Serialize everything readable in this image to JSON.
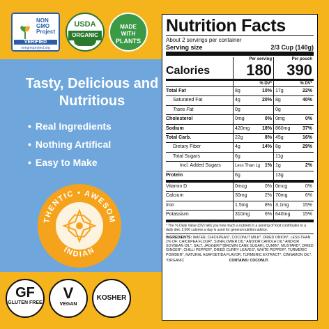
{
  "badges": {
    "nongmo_title": "NON GMO Project",
    "nongmo_verified": "VERIFIED",
    "nongmo_url": "nongmoproject.org",
    "usda_top": "USDA",
    "usda_label": "ORGANIC",
    "plants_line1": "MADE",
    "plants_line2": "WITH",
    "plants_line3": "PLANTS"
  },
  "headline": "Tasty, Delicious and Nutritious",
  "bullets": [
    "Real Ingredients",
    "Nothing Artifical",
    "Easy to Make"
  ],
  "seal": {
    "top_text": "AUTHENTIC • AWESOME •",
    "bottom_text": "INDIAN"
  },
  "bottom_badges": {
    "gf_big": "GF",
    "gf_small": "GLUTEN FREE",
    "vegan_big": "V",
    "vegan_small": "VEGAN",
    "kosher": "KOSHER"
  },
  "nutrition": {
    "title": "Nutrition Facts",
    "servings": "About 2 servings per container",
    "serving_size_label": "Serving size",
    "serving_size_value": "2/3 Cup (140g)",
    "per_serving": "Per serving",
    "per_pouch": "Per pouch",
    "calories_label": "Calories",
    "calories_serving": "180",
    "calories_pouch": "390",
    "dv_label": "% DV*",
    "rows": [
      {
        "name": "Total Fat",
        "style": "b",
        "a1": "8g",
        "p1": "10%",
        "a2": "17g",
        "p2": "22%"
      },
      {
        "name": "Saturated Fat",
        "style": "ind",
        "a1": "4g",
        "p1": "20%",
        "a2": "8g",
        "p2": "40%"
      },
      {
        "name": "Trans Fat",
        "style": "ind i",
        "a1": "0g",
        "p1": "",
        "a2": "0g",
        "p2": ""
      },
      {
        "name": "Cholesterol",
        "style": "b",
        "a1": "0mg",
        "p1": "0%",
        "a2": "0mg",
        "p2": "0%"
      },
      {
        "name": "Sodium",
        "style": "b",
        "a1": "420mg",
        "p1": "18%",
        "a2": "860mg",
        "p2": "37%"
      },
      {
        "name": "Total Carb.",
        "style": "b",
        "a1": "22g",
        "p1": "8%",
        "a2": "45g",
        "p2": "16%"
      },
      {
        "name": "Dietary Fiber",
        "style": "ind",
        "a1": "4g",
        "p1": "14%",
        "a2": "8g",
        "p2": "29%"
      },
      {
        "name": "Total Sugars",
        "style": "ind",
        "a1": "6g",
        "p1": "",
        "a2": "11g",
        "p2": ""
      },
      {
        "name": "Incl. Added Sugars",
        "style": "ind2",
        "a1": "Less Than 1g",
        "p1": "1%",
        "a2": "1g",
        "p2": "2%"
      },
      {
        "name": "Protein",
        "style": "b",
        "a1": "6g",
        "p1": "",
        "a2": "13g",
        "p2": ""
      },
      {
        "name": "Vitamin D",
        "style": "",
        "a1": "0mcg",
        "p1": "0%",
        "a2": "0mcg",
        "p2": "0%"
      },
      {
        "name": "Calcium",
        "style": "",
        "a1": "30mg",
        "p1": "2%",
        "a2": "70mg",
        "p2": "6%"
      },
      {
        "name": "Iron",
        "style": "",
        "a1": "1.5mg",
        "p1": "8%",
        "a2": "3.1mg",
        "p2": "15%"
      },
      {
        "name": "Potassium",
        "style": "",
        "a1": "310mg",
        "p1": "6%",
        "a2": "640mg",
        "p2": "15%"
      }
    ],
    "footnote": "* The % Daily Value (DV) tells you how much a nutrient in a serving of food contributes to a daily diet. 2,000 calories a day is used for general nutrition advice.",
    "ingredients_label": "INGREDIENTS:",
    "ingredients": "WATER, CHICKPEAS*, COCONUT MILK*, DRIED ONION*, LESS THAN 2% OF: CHICKPEA FLOUR*, SUNFLOWER OIL* AND/OR CANOLA OIL* AND/OR SOYBEAN OIL*, SALT, JAGGERY*(BROWN CANE SUGAR), CUMIN*, MUSTARD*, DRIED GINGER*, CHILLI PEPPER*, DRIED CURRY LEAVES*, WHITE PEPPER*, TURMERIC POWDER*, NATURAL ASAFOETIDA FLAVOR, TURMERIC EXTRACT*, CINNAMON OIL*.",
    "organic_note": "*ORGANIC",
    "contains": "CONTAINS: COCONUT."
  }
}
